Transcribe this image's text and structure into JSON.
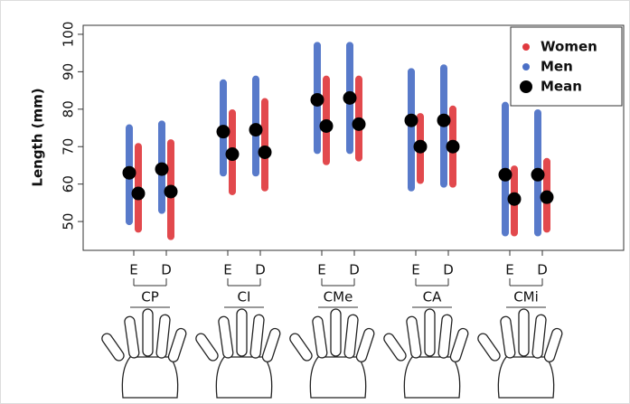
{
  "chart_data": {
    "type": "strip",
    "y_label": "Length (mm)",
    "groups": [
      "CP",
      "CI",
      "CMe",
      "CA",
      "CMi"
    ],
    "sides": [
      "E",
      "D"
    ],
    "ylim": [
      42.3,
      102.4
    ],
    "yticks": [
      50,
      60,
      70,
      80,
      90,
      100
    ],
    "mean_name": "Mean",
    "mean_color": "#000000",
    "series": [
      {
        "name": "Women",
        "color": "#e0393e",
        "low": [
          48,
          46,
          58,
          59,
          66,
          67,
          61,
          60,
          47,
          48
        ],
        "high": [
          70,
          71,
          79,
          82,
          88,
          88,
          78,
          80,
          64,
          66
        ],
        "mean": [
          57.5,
          58,
          68,
          68.5,
          75.5,
          76,
          70,
          70,
          56,
          56.5
        ]
      },
      {
        "name": "Men",
        "color": "#4a6fc6",
        "low": [
          50,
          53,
          63,
          63,
          69,
          69,
          59,
          60,
          47,
          47
        ],
        "high": [
          75,
          76,
          87,
          88,
          97,
          97,
          90,
          91,
          81,
          79
        ],
        "mean": [
          63,
          64,
          74,
          74.5,
          82.5,
          83,
          77,
          77,
          62.5,
          62.5
        ]
      }
    ]
  }
}
